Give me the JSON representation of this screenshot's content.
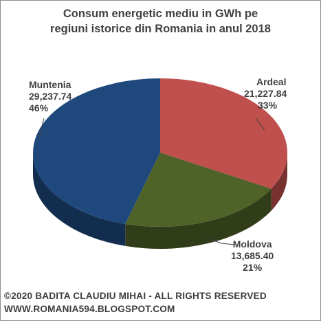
{
  "chart_data": {
    "type": "pie",
    "title_lines": [
      "Consum energetic mediu in GWh pe",
      "regiuni istorice din Romania in anul 2018"
    ],
    "slices": [
      {
        "name": "Ardeal",
        "value_label": "21,227.84",
        "percent_label": "33%",
        "value": 21227.84,
        "percent": 33,
        "color": "#c0504d"
      },
      {
        "name": "Moldova",
        "value_label": "13,685.40",
        "percent_label": "21%",
        "value": 13685.4,
        "percent": 21,
        "color": "#4f6228"
      },
      {
        "name": "Muntenia",
        "value_label": "29,237.74",
        "percent_label": "46%",
        "value": 29237.74,
        "percent": 46,
        "color": "#1f497d"
      }
    ]
  },
  "footer": {
    "copyright": "©2020 BADITA CLAUDIU MIHAI - ALL RIGHTS RESERVED",
    "website": "WWW.ROMANIA594.BLOGSPOT.COM"
  }
}
